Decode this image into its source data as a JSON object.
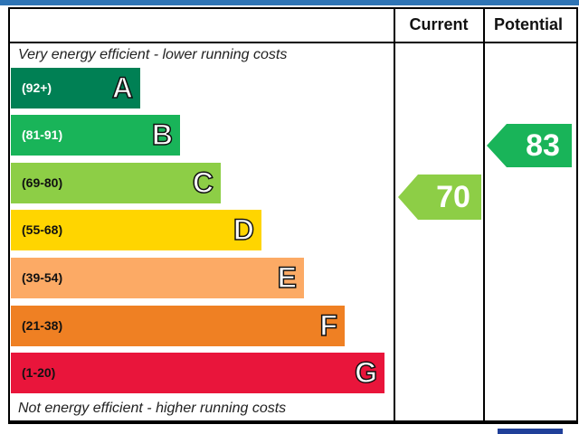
{
  "header": {
    "current": "Current",
    "potential": "Potential"
  },
  "top_note": "Very energy efficient - lower running costs",
  "bottom_note": "Not energy efficient - higher running costs",
  "bands": [
    {
      "range": "(92+)",
      "letter": "A",
      "color": "#008054"
    },
    {
      "range": "(81-91)",
      "letter": "B",
      "color": "#19b459"
    },
    {
      "range": "(69-80)",
      "letter": "C",
      "color": "#8dce46"
    },
    {
      "range": "(55-68)",
      "letter": "D",
      "color": "#ffd500"
    },
    {
      "range": "(39-54)",
      "letter": "E",
      "color": "#fcaa65"
    },
    {
      "range": "(21-38)",
      "letter": "F",
      "color": "#ef8023"
    },
    {
      "range": "(1-20)",
      "letter": "G",
      "color": "#e9153b"
    }
  ],
  "current": {
    "value": 70,
    "color": "#8dce46"
  },
  "potential": {
    "value": 83,
    "color": "#19b459"
  }
}
